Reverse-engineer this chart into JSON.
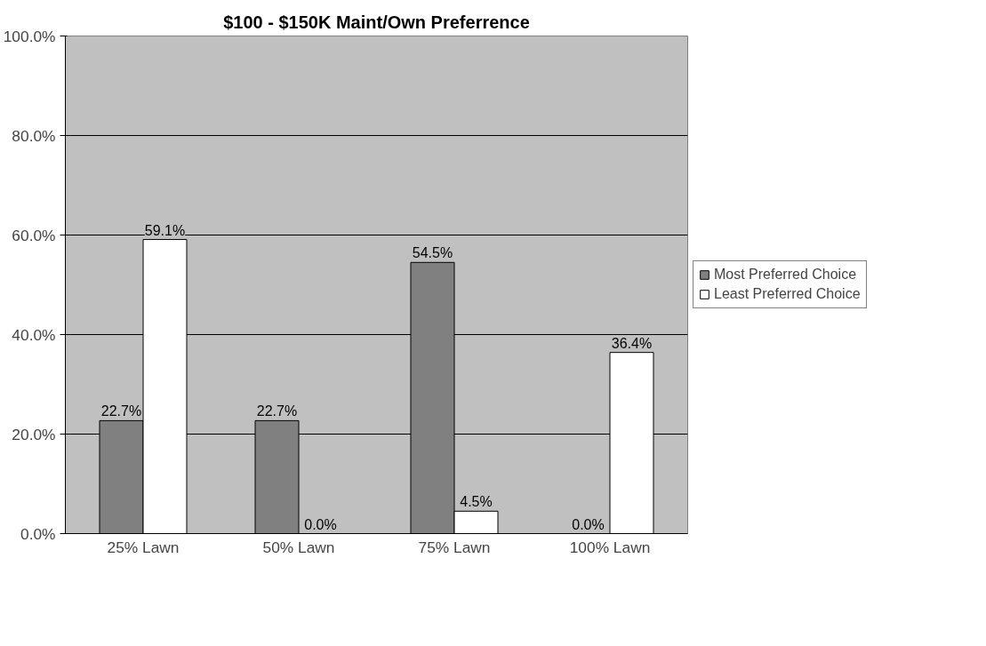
{
  "chart_data": {
    "type": "bar",
    "title": "$100 - $150K Maint/Own Preferrence",
    "categories": [
      "25% Lawn",
      "50% Lawn",
      "75% Lawn",
      "100% Lawn"
    ],
    "series": [
      {
        "name": "Most Preferred Choice",
        "color": "#808080",
        "values": [
          22.7,
          22.7,
          54.5,
          0.0
        ],
        "value_labels": [
          "22.7%",
          "22.7%",
          "54.5%",
          "0.0%"
        ]
      },
      {
        "name": "Least Preferred Choice",
        "color": "#ffffff",
        "values": [
          59.1,
          0.0,
          4.5,
          36.4
        ],
        "value_labels": [
          "59.1%",
          "0.0%",
          "4.5%",
          "36.4%"
        ]
      }
    ],
    "ylim": [
      0,
      100
    ],
    "yticks": [
      {
        "value": 0,
        "label": "0.0%"
      },
      {
        "value": 20,
        "label": "20.0%"
      },
      {
        "value": 40,
        "label": "40.0%"
      },
      {
        "value": 60,
        "label": "60.0%"
      },
      {
        "value": 80,
        "label": "80.0%"
      },
      {
        "value": 100,
        "label": "100.0%"
      }
    ],
    "grid": "y",
    "legend": "right"
  }
}
